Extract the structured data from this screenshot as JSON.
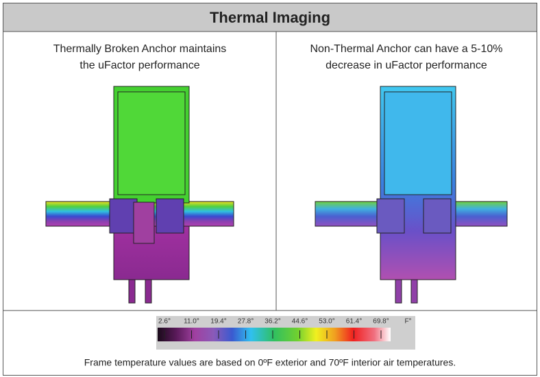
{
  "title": "Thermal Imaging",
  "panels": [
    {
      "caption": [
        "Thermally Broken Anchor maintains",
        "the uFactor performance"
      ]
    },
    {
      "caption": [
        "Non-Thermal Anchor can have a 5-10%",
        "decrease in uFactor performance"
      ]
    }
  ],
  "scale": {
    "labels": [
      "2.6°",
      "11.0°",
      "19.4°",
      "27.8°",
      "36.2°",
      "44.6°",
      "53.0°",
      "61.4°",
      "69.8°",
      "F°"
    ]
  },
  "note": "Frame temperature values are based on 0ºF exterior and 70ºF interior air temperatures."
}
